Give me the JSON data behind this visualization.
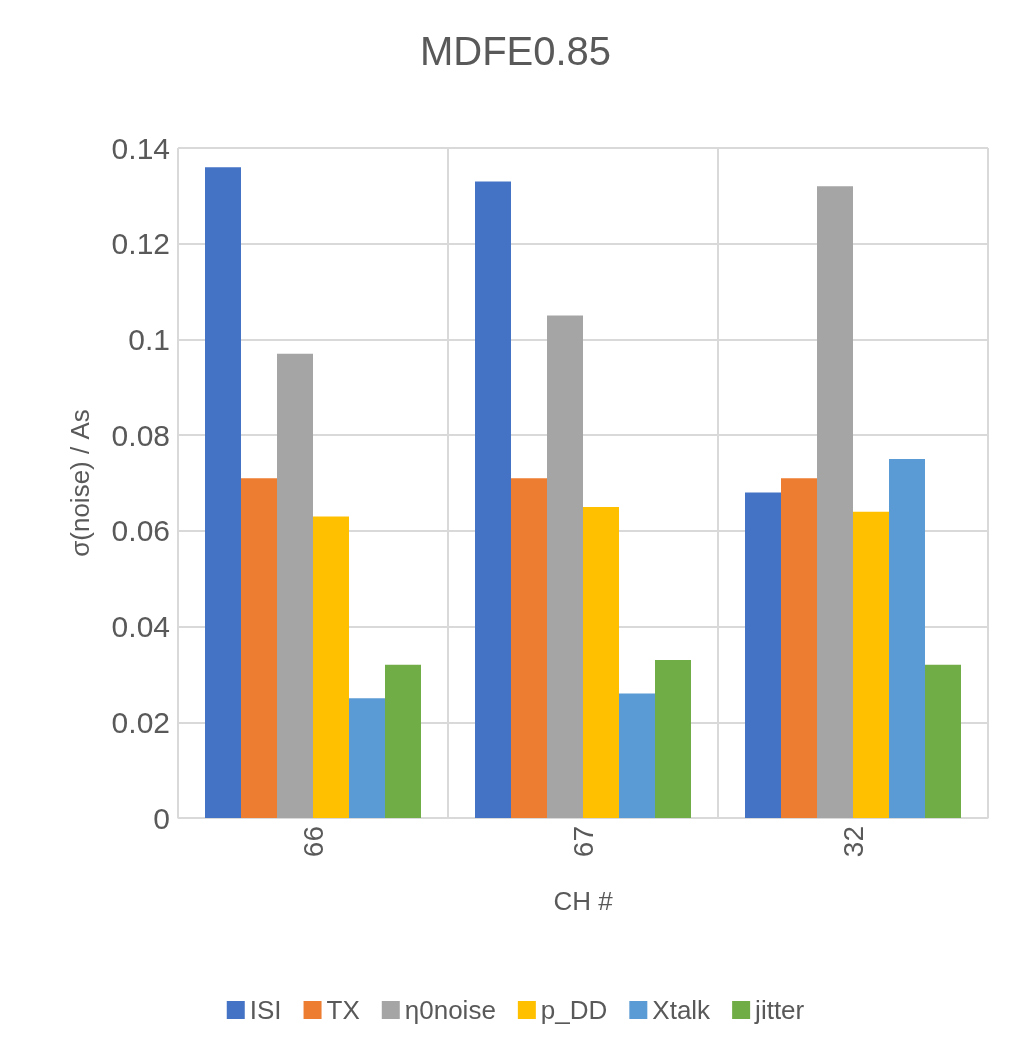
{
  "chart_data": {
    "type": "bar",
    "title": "MDFE0.85",
    "xlabel": "CH #",
    "ylabel": "σ(noise) / As",
    "categories": [
      "66",
      "67",
      "32"
    ],
    "series": [
      {
        "name": "ISI",
        "color": "#4472c4",
        "values": [
          0.136,
          0.133,
          0.068
        ]
      },
      {
        "name": "TX",
        "color": "#ed7d31",
        "values": [
          0.071,
          0.071,
          0.071
        ]
      },
      {
        "name": "η0noise",
        "color": "#a5a5a5",
        "values": [
          0.097,
          0.105,
          0.132
        ]
      },
      {
        "name": "p_DD",
        "color": "#ffc000",
        "values": [
          0.063,
          0.065,
          0.064
        ]
      },
      {
        "name": "Xtalk",
        "color": "#5b9bd5",
        "values": [
          0.025,
          0.026,
          0.075
        ]
      },
      {
        "name": "jitter",
        "color": "#70ad47",
        "values": [
          0.032,
          0.033,
          0.032
        ]
      }
    ],
    "ylim": [
      0,
      0.14
    ],
    "yticks": [
      0,
      0.02,
      0.04,
      0.06,
      0.08,
      0.1,
      0.12,
      0.14
    ],
    "grid": true,
    "legend": "bottom"
  }
}
